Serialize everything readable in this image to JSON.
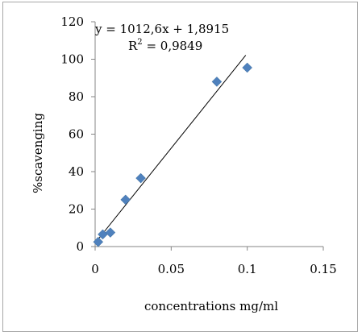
{
  "chart_data": {
    "type": "scatter",
    "title": "",
    "xlabel": "concentrations mg/ml",
    "ylabel": "%scavenging",
    "xlim": [
      0,
      0.15
    ],
    "ylim": [
      0,
      120
    ],
    "x_ticks": [
      "0",
      "0.05",
      "0.1",
      "0.15"
    ],
    "y_ticks": [
      "0",
      "20",
      "40",
      "60",
      "80",
      "100",
      "120"
    ],
    "grid": false,
    "legend": "none",
    "series": [
      {
        "marker": "diamond",
        "color": "#4f81bd",
        "points": [
          {
            "x": 0.002,
            "y": 2.5
          },
          {
            "x": 0.005,
            "y": 6.5
          },
          {
            "x": 0.01,
            "y": 7.5
          },
          {
            "x": 0.02,
            "y": 25
          },
          {
            "x": 0.03,
            "y": 36.5
          },
          {
            "x": 0.08,
            "y": 88
          },
          {
            "x": 0.1,
            "y": 95.5
          }
        ]
      }
    ],
    "trendline": {
      "slope": 1012.6,
      "intercept": 1.8915,
      "x_range": [
        0,
        0.099
      ],
      "equation_text": "y = 1012,6x + 1,8915",
      "r2_prefix": "R",
      "r2_exponent": "2",
      "r2_suffix": " = 0,9849"
    }
  }
}
